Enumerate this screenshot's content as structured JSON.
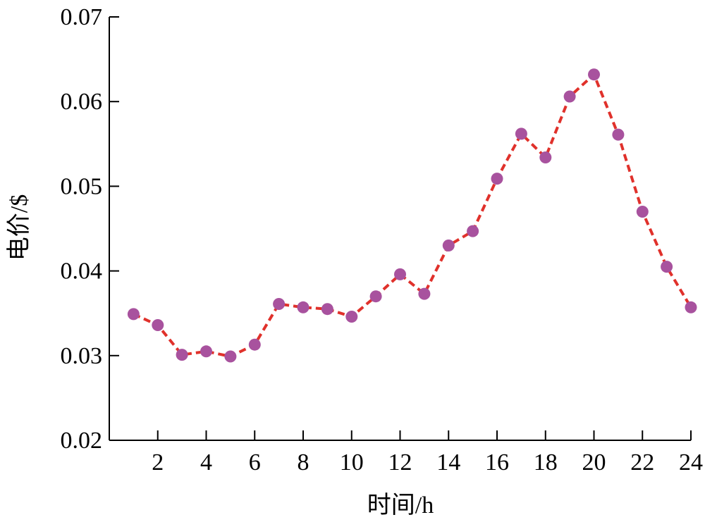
{
  "chart_data": {
    "type": "line",
    "title": "",
    "xlabel": "时间/h",
    "ylabel": "电价/$",
    "xlim": [
      0,
      24
    ],
    "ylim": [
      0.02,
      0.07
    ],
    "x_ticks": [
      2,
      4,
      6,
      8,
      10,
      12,
      14,
      16,
      18,
      20,
      22,
      24
    ],
    "x_tick_labels": [
      "2",
      "4",
      "6",
      "8",
      "10",
      "12",
      "14",
      "16",
      "18",
      "20",
      "22",
      "24"
    ],
    "y_ticks": [
      0.02,
      0.03,
      0.04,
      0.05,
      0.06,
      0.07
    ],
    "y_tick_labels": [
      "0.02",
      "0.03",
      "0.04",
      "0.05",
      "0.06",
      "0.07"
    ],
    "grid": false,
    "legend": "none",
    "series": [
      {
        "x": [
          1,
          2,
          3,
          4,
          5,
          6,
          7,
          8,
          9,
          10,
          11,
          12,
          13,
          14,
          15,
          16,
          17,
          18,
          19,
          20,
          21,
          22,
          23,
          24
        ],
        "values": [
          0.0349,
          0.0336,
          0.0301,
          0.0305,
          0.0299,
          0.0313,
          0.0361,
          0.0357,
          0.0355,
          0.0346,
          0.037,
          0.0396,
          0.0373,
          0.043,
          0.0447,
          0.0509,
          0.0562,
          0.0534,
          0.0606,
          0.0632,
          0.0561,
          0.047,
          0.0405,
          0.0357
        ],
        "line_color": "#e0312b",
        "line_style": "dashed",
        "marker_color": "#a8529e",
        "marker": "circle"
      }
    ]
  }
}
